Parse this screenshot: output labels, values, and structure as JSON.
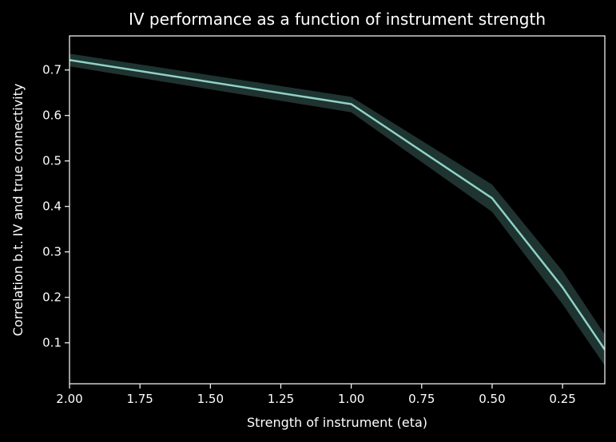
{
  "chart_data": {
    "type": "line",
    "title": "IV performance as a function of instrument strength",
    "xlabel": "Strength of instrument (eta)",
    "ylabel": "Correlation b.t. IV and true connectivity",
    "x_reversed": true,
    "xlim": [
      2.0,
      0.1
    ],
    "ylim": [
      0.01,
      0.775
    ],
    "xticks": [
      "2.00",
      "1.75",
      "1.50",
      "1.25",
      "1.00",
      "0.75",
      "0.50",
      "0.25"
    ],
    "yticks": [
      "0.1",
      "0.2",
      "0.3",
      "0.4",
      "0.5",
      "0.6",
      "0.7"
    ],
    "grid": false,
    "series": [
      {
        "x": [
          2.0,
          1.0,
          0.5,
          0.25,
          0.1
        ],
        "y": [
          0.722,
          0.625,
          0.418,
          0.222,
          0.085
        ],
        "y_lower": [
          0.708,
          0.607,
          0.388,
          0.185,
          0.05
        ],
        "y_upper": [
          0.736,
          0.641,
          0.448,
          0.258,
          0.118
        ]
      }
    ],
    "colors": {
      "background": "#000000",
      "axes": "#ffffff",
      "line": "#8dd3c7",
      "band": "#1f3330"
    }
  }
}
